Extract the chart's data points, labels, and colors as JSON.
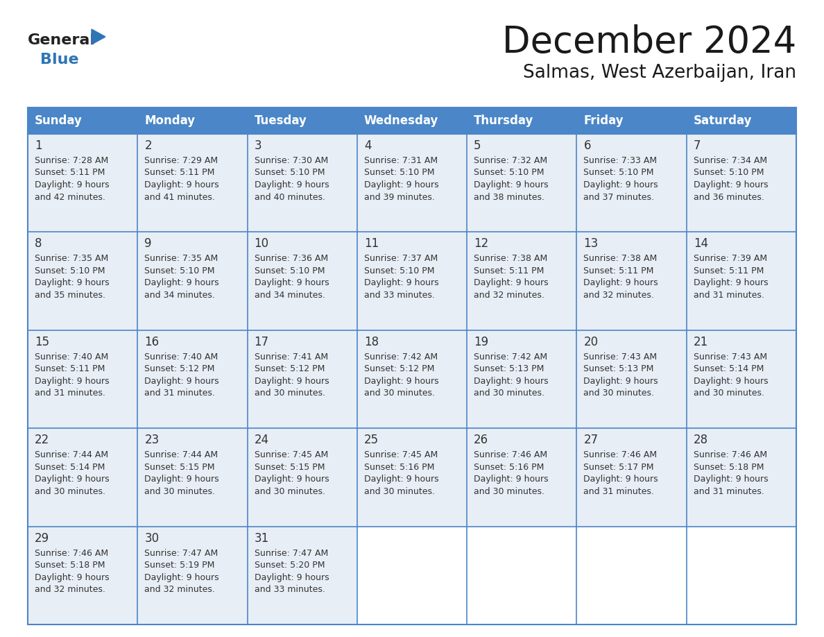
{
  "title": "December 2024",
  "subtitle": "Salmas, West Azerbaijan, Iran",
  "days_of_week": [
    "Sunday",
    "Monday",
    "Tuesday",
    "Wednesday",
    "Thursday",
    "Friday",
    "Saturday"
  ],
  "header_bg": "#4a86c8",
  "cell_bg": "#e8eef5",
  "cell_bg_last": "#e8eef5",
  "day_num_color": "#333333",
  "text_color": "#333333",
  "grid_color": "#4a86c8",
  "title_color": "#1a1a1a",
  "subtitle_color": "#1a1a1a",
  "logo_general_color": "#222222",
  "logo_blue_color": "#2e75b6",
  "calendar_data": [
    {
      "day": 1,
      "col": 0,
      "row": 0,
      "sunrise": "7:28 AM",
      "sunset": "5:11 PM",
      "daylight": "9 hours and 42 minutes."
    },
    {
      "day": 2,
      "col": 1,
      "row": 0,
      "sunrise": "7:29 AM",
      "sunset": "5:11 PM",
      "daylight": "9 hours and 41 minutes."
    },
    {
      "day": 3,
      "col": 2,
      "row": 0,
      "sunrise": "7:30 AM",
      "sunset": "5:10 PM",
      "daylight": "9 hours and 40 minutes."
    },
    {
      "day": 4,
      "col": 3,
      "row": 0,
      "sunrise": "7:31 AM",
      "sunset": "5:10 PM",
      "daylight": "9 hours and 39 minutes."
    },
    {
      "day": 5,
      "col": 4,
      "row": 0,
      "sunrise": "7:32 AM",
      "sunset": "5:10 PM",
      "daylight": "9 hours and 38 minutes."
    },
    {
      "day": 6,
      "col": 5,
      "row": 0,
      "sunrise": "7:33 AM",
      "sunset": "5:10 PM",
      "daylight": "9 hours and 37 minutes."
    },
    {
      "day": 7,
      "col": 6,
      "row": 0,
      "sunrise": "7:34 AM",
      "sunset": "5:10 PM",
      "daylight": "9 hours and 36 minutes."
    },
    {
      "day": 8,
      "col": 0,
      "row": 1,
      "sunrise": "7:35 AM",
      "sunset": "5:10 PM",
      "daylight": "9 hours and 35 minutes."
    },
    {
      "day": 9,
      "col": 1,
      "row": 1,
      "sunrise": "7:35 AM",
      "sunset": "5:10 PM",
      "daylight": "9 hours and 34 minutes."
    },
    {
      "day": 10,
      "col": 2,
      "row": 1,
      "sunrise": "7:36 AM",
      "sunset": "5:10 PM",
      "daylight": "9 hours and 34 minutes."
    },
    {
      "day": 11,
      "col": 3,
      "row": 1,
      "sunrise": "7:37 AM",
      "sunset": "5:10 PM",
      "daylight": "9 hours and 33 minutes."
    },
    {
      "day": 12,
      "col": 4,
      "row": 1,
      "sunrise": "7:38 AM",
      "sunset": "5:11 PM",
      "daylight": "9 hours and 32 minutes."
    },
    {
      "day": 13,
      "col": 5,
      "row": 1,
      "sunrise": "7:38 AM",
      "sunset": "5:11 PM",
      "daylight": "9 hours and 32 minutes."
    },
    {
      "day": 14,
      "col": 6,
      "row": 1,
      "sunrise": "7:39 AM",
      "sunset": "5:11 PM",
      "daylight": "9 hours and 31 minutes."
    },
    {
      "day": 15,
      "col": 0,
      "row": 2,
      "sunrise": "7:40 AM",
      "sunset": "5:11 PM",
      "daylight": "9 hours and 31 minutes."
    },
    {
      "day": 16,
      "col": 1,
      "row": 2,
      "sunrise": "7:40 AM",
      "sunset": "5:12 PM",
      "daylight": "9 hours and 31 minutes."
    },
    {
      "day": 17,
      "col": 2,
      "row": 2,
      "sunrise": "7:41 AM",
      "sunset": "5:12 PM",
      "daylight": "9 hours and 30 minutes."
    },
    {
      "day": 18,
      "col": 3,
      "row": 2,
      "sunrise": "7:42 AM",
      "sunset": "5:12 PM",
      "daylight": "9 hours and 30 minutes."
    },
    {
      "day": 19,
      "col": 4,
      "row": 2,
      "sunrise": "7:42 AM",
      "sunset": "5:13 PM",
      "daylight": "9 hours and 30 minutes."
    },
    {
      "day": 20,
      "col": 5,
      "row": 2,
      "sunrise": "7:43 AM",
      "sunset": "5:13 PM",
      "daylight": "9 hours and 30 minutes."
    },
    {
      "day": 21,
      "col": 6,
      "row": 2,
      "sunrise": "7:43 AM",
      "sunset": "5:14 PM",
      "daylight": "9 hours and 30 minutes."
    },
    {
      "day": 22,
      "col": 0,
      "row": 3,
      "sunrise": "7:44 AM",
      "sunset": "5:14 PM",
      "daylight": "9 hours and 30 minutes."
    },
    {
      "day": 23,
      "col": 1,
      "row": 3,
      "sunrise": "7:44 AM",
      "sunset": "5:15 PM",
      "daylight": "9 hours and 30 minutes."
    },
    {
      "day": 24,
      "col": 2,
      "row": 3,
      "sunrise": "7:45 AM",
      "sunset": "5:15 PM",
      "daylight": "9 hours and 30 minutes."
    },
    {
      "day": 25,
      "col": 3,
      "row": 3,
      "sunrise": "7:45 AM",
      "sunset": "5:16 PM",
      "daylight": "9 hours and 30 minutes."
    },
    {
      "day": 26,
      "col": 4,
      "row": 3,
      "sunrise": "7:46 AM",
      "sunset": "5:16 PM",
      "daylight": "9 hours and 30 minutes."
    },
    {
      "day": 27,
      "col": 5,
      "row": 3,
      "sunrise": "7:46 AM",
      "sunset": "5:17 PM",
      "daylight": "9 hours and 31 minutes."
    },
    {
      "day": 28,
      "col": 6,
      "row": 3,
      "sunrise": "7:46 AM",
      "sunset": "5:18 PM",
      "daylight": "9 hours and 31 minutes."
    },
    {
      "day": 29,
      "col": 0,
      "row": 4,
      "sunrise": "7:46 AM",
      "sunset": "5:18 PM",
      "daylight": "9 hours and 32 minutes."
    },
    {
      "day": 30,
      "col": 1,
      "row": 4,
      "sunrise": "7:47 AM",
      "sunset": "5:19 PM",
      "daylight": "9 hours and 32 minutes."
    },
    {
      "day": 31,
      "col": 2,
      "row": 4,
      "sunrise": "7:47 AM",
      "sunset": "5:20 PM",
      "daylight": "9 hours and 33 minutes."
    }
  ]
}
